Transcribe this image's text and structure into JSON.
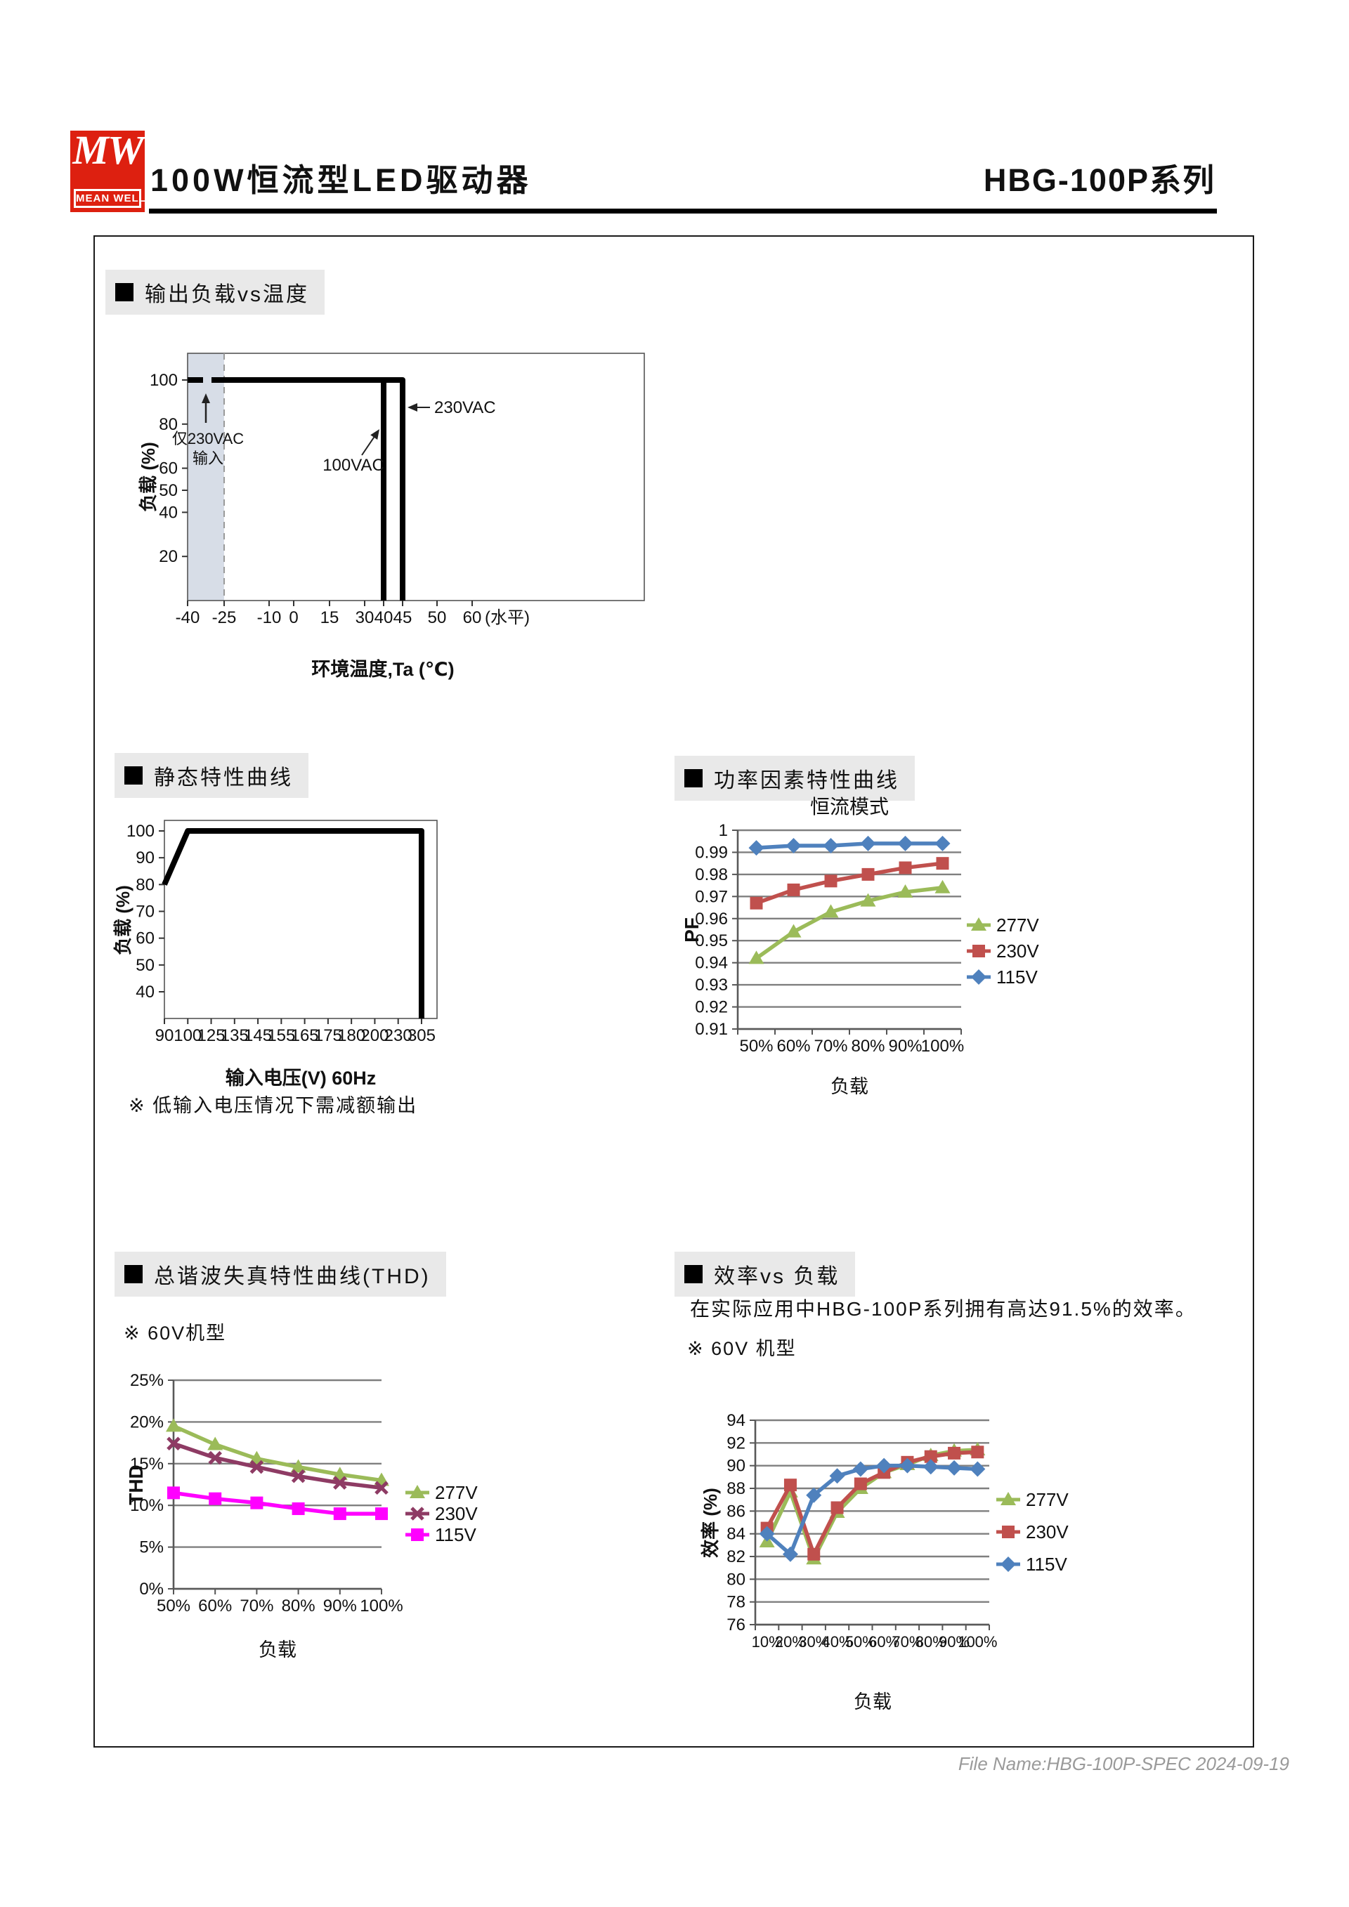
{
  "page": {
    "logo": {
      "mw": "MW",
      "brand": "MEAN WELL",
      "color": "#DD2010"
    },
    "title": "100W恒流型LED驱动器",
    "series": "HBG-100P系列",
    "footer": "File Name:HBG-100P-SPEC  2024-09-19"
  },
  "colors": {
    "brand_red": "#DD2010",
    "section_header_bg": "#E9E9E9",
    "gridline": "#7F7F7F",
    "shade": "#D7DDE7",
    "green_277v": "#9BBB59",
    "red_230v": "#C0504D",
    "blue_115v": "#4F81BD",
    "maroon_230v_thd": "#8E3B64",
    "magenta_115v_thd": "#FF00FF"
  },
  "sections": {
    "derating": {
      "header": "输出负载vs温度"
    },
    "static": {
      "header": "静态特性曲线",
      "note": "※ 低输入电压情况下需减额输出"
    },
    "pf": {
      "header": "功率因素特性曲线"
    },
    "thd": {
      "header": "总谐波失真特性曲线(THD)",
      "note": "※ 60V机型"
    },
    "eff": {
      "header": "效率vs 负载",
      "description": "在实际应用中HBG-100P系列拥有高达91.5%的效率。",
      "note": "※ 60V 机型"
    }
  },
  "chart_data": [
    {
      "id": "derating",
      "type": "line",
      "title": "输出负载vs温度",
      "xlabel": "环境温度,Ta (℃)",
      "ylabel": "负载 (%)",
      "x_axis_suffix": "(水平)",
      "y_ticks": [
        100,
        80,
        60,
        50,
        40,
        20
      ],
      "x_ticks": [
        -40,
        -25,
        -10,
        0,
        15,
        30,
        40,
        45,
        50,
        60
      ],
      "ylim": [
        0,
        112
      ],
      "shade": {
        "from": -40,
        "to": -25,
        "label_line1": "仅230VAC",
        "label_line2": "输入"
      },
      "series": [
        {
          "name": "230VAC",
          "points": [
            [
              -40,
              100
            ],
            [
              -25,
              100
            ],
            [
              45,
              100
            ],
            [
              45,
              0
            ]
          ],
          "dashed_before": -25
        },
        {
          "name": "100VAC",
          "points": [
            [
              40,
              100
            ],
            [
              40,
              0
            ]
          ]
        }
      ],
      "annotations": [
        {
          "text": "100VAC"
        },
        {
          "text": "230VAC"
        }
      ]
    },
    {
      "id": "static",
      "type": "line",
      "title": "静态特性曲线",
      "xlabel": "输入电压(V) 60Hz",
      "ylabel": "负载 (%)",
      "y_ticks": [
        100,
        90,
        80,
        70,
        60,
        50,
        40
      ],
      "x_ticks": [
        90,
        100,
        125,
        135,
        145,
        155,
        165,
        175,
        180,
        200,
        230,
        305
      ],
      "ylim": [
        30,
        104
      ],
      "points": [
        [
          90,
          80
        ],
        [
          100,
          100
        ],
        [
          305,
          100
        ],
        [
          305,
          0
        ]
      ]
    },
    {
      "id": "pf",
      "type": "line",
      "title": "恒流模式",
      "xlabel": "负载",
      "ylabel": "PF",
      "categories": [
        "50%",
        "60%",
        "70%",
        "80%",
        "90%",
        "100%"
      ],
      "y_ticks": [
        "1",
        "0.99",
        "0.98",
        "0.97",
        "0.96",
        "0.95",
        "0.94",
        "0.93",
        "0.92",
        "0.91"
      ],
      "ylim": [
        0.91,
        1.0
      ],
      "grid": true,
      "legend_position": "right",
      "series": [
        {
          "name": "277V",
          "color": "#9BBB59",
          "marker": "triangle",
          "values": [
            0.942,
            0.954,
            0.963,
            0.968,
            0.972,
            0.974
          ]
        },
        {
          "name": "230V",
          "color": "#C0504D",
          "marker": "square",
          "values": [
            0.967,
            0.973,
            0.977,
            0.98,
            0.983,
            0.985
          ]
        },
        {
          "name": "115V",
          "color": "#4F81BD",
          "marker": "diamond",
          "values": [
            0.992,
            0.993,
            0.993,
            0.994,
            0.994,
            0.994
          ]
        }
      ]
    },
    {
      "id": "thd",
      "type": "line",
      "title": "总谐波失真特性曲线(THD)",
      "xlabel": "负载",
      "ylabel": "THD",
      "model_note": "※ 60V机型",
      "categories": [
        "50%",
        "60%",
        "70%",
        "80%",
        "90%",
        "100%"
      ],
      "y_ticks": [
        "25%",
        "20%",
        "15%",
        "10%",
        "5%",
        "0%"
      ],
      "ylim": [
        0,
        25
      ],
      "grid": true,
      "legend_position": "right",
      "series": [
        {
          "name": "277V",
          "color": "#9BBB59",
          "marker": "triangle",
          "values": [
            19.5,
            17.3,
            15.6,
            14.6,
            13.7,
            13.0
          ]
        },
        {
          "name": "230V",
          "color": "#8E3B64",
          "marker": "xcross",
          "values": [
            17.4,
            15.7,
            14.6,
            13.5,
            12.7,
            12.1
          ]
        },
        {
          "name": "115V",
          "color": "#FF00FF",
          "marker": "square",
          "values": [
            11.5,
            10.8,
            10.3,
            9.6,
            9.0,
            9.0
          ]
        }
      ]
    },
    {
      "id": "eff",
      "type": "line",
      "title": "效率vs 负载",
      "xlabel": "负载",
      "ylabel": "效率 (%)",
      "description": "在实际应用中HBG-100P系列拥有高达91.5%的效率。",
      "model_note": "※ 60V 机型",
      "categories": [
        "10%",
        "20%",
        "30%",
        "40%",
        "50%",
        "60%",
        "70%",
        "80%",
        "90%",
        "100%"
      ],
      "y_ticks": [
        94,
        92,
        90,
        88,
        86,
        84,
        82,
        80,
        78,
        76
      ],
      "ylim": [
        76,
        94
      ],
      "grid": true,
      "legend_position": "right",
      "series": [
        {
          "name": "277V",
          "color": "#9BBB59",
          "marker": "triangle",
          "values": [
            83.3,
            87.7,
            81.8,
            85.9,
            88.0,
            89.4,
            90.1,
            90.9,
            91.3,
            91.4
          ]
        },
        {
          "name": "230V",
          "color": "#C0504D",
          "marker": "square",
          "values": [
            84.5,
            88.3,
            82.2,
            86.3,
            88.4,
            89.4,
            90.3,
            90.8,
            91.1,
            91.2
          ]
        },
        {
          "name": "115V",
          "color": "#4F81BD",
          "marker": "diamond",
          "values": [
            84.0,
            82.2,
            87.4,
            89.1,
            89.7,
            90.0,
            90.0,
            89.9,
            89.8,
            89.7
          ]
        }
      ]
    }
  ]
}
